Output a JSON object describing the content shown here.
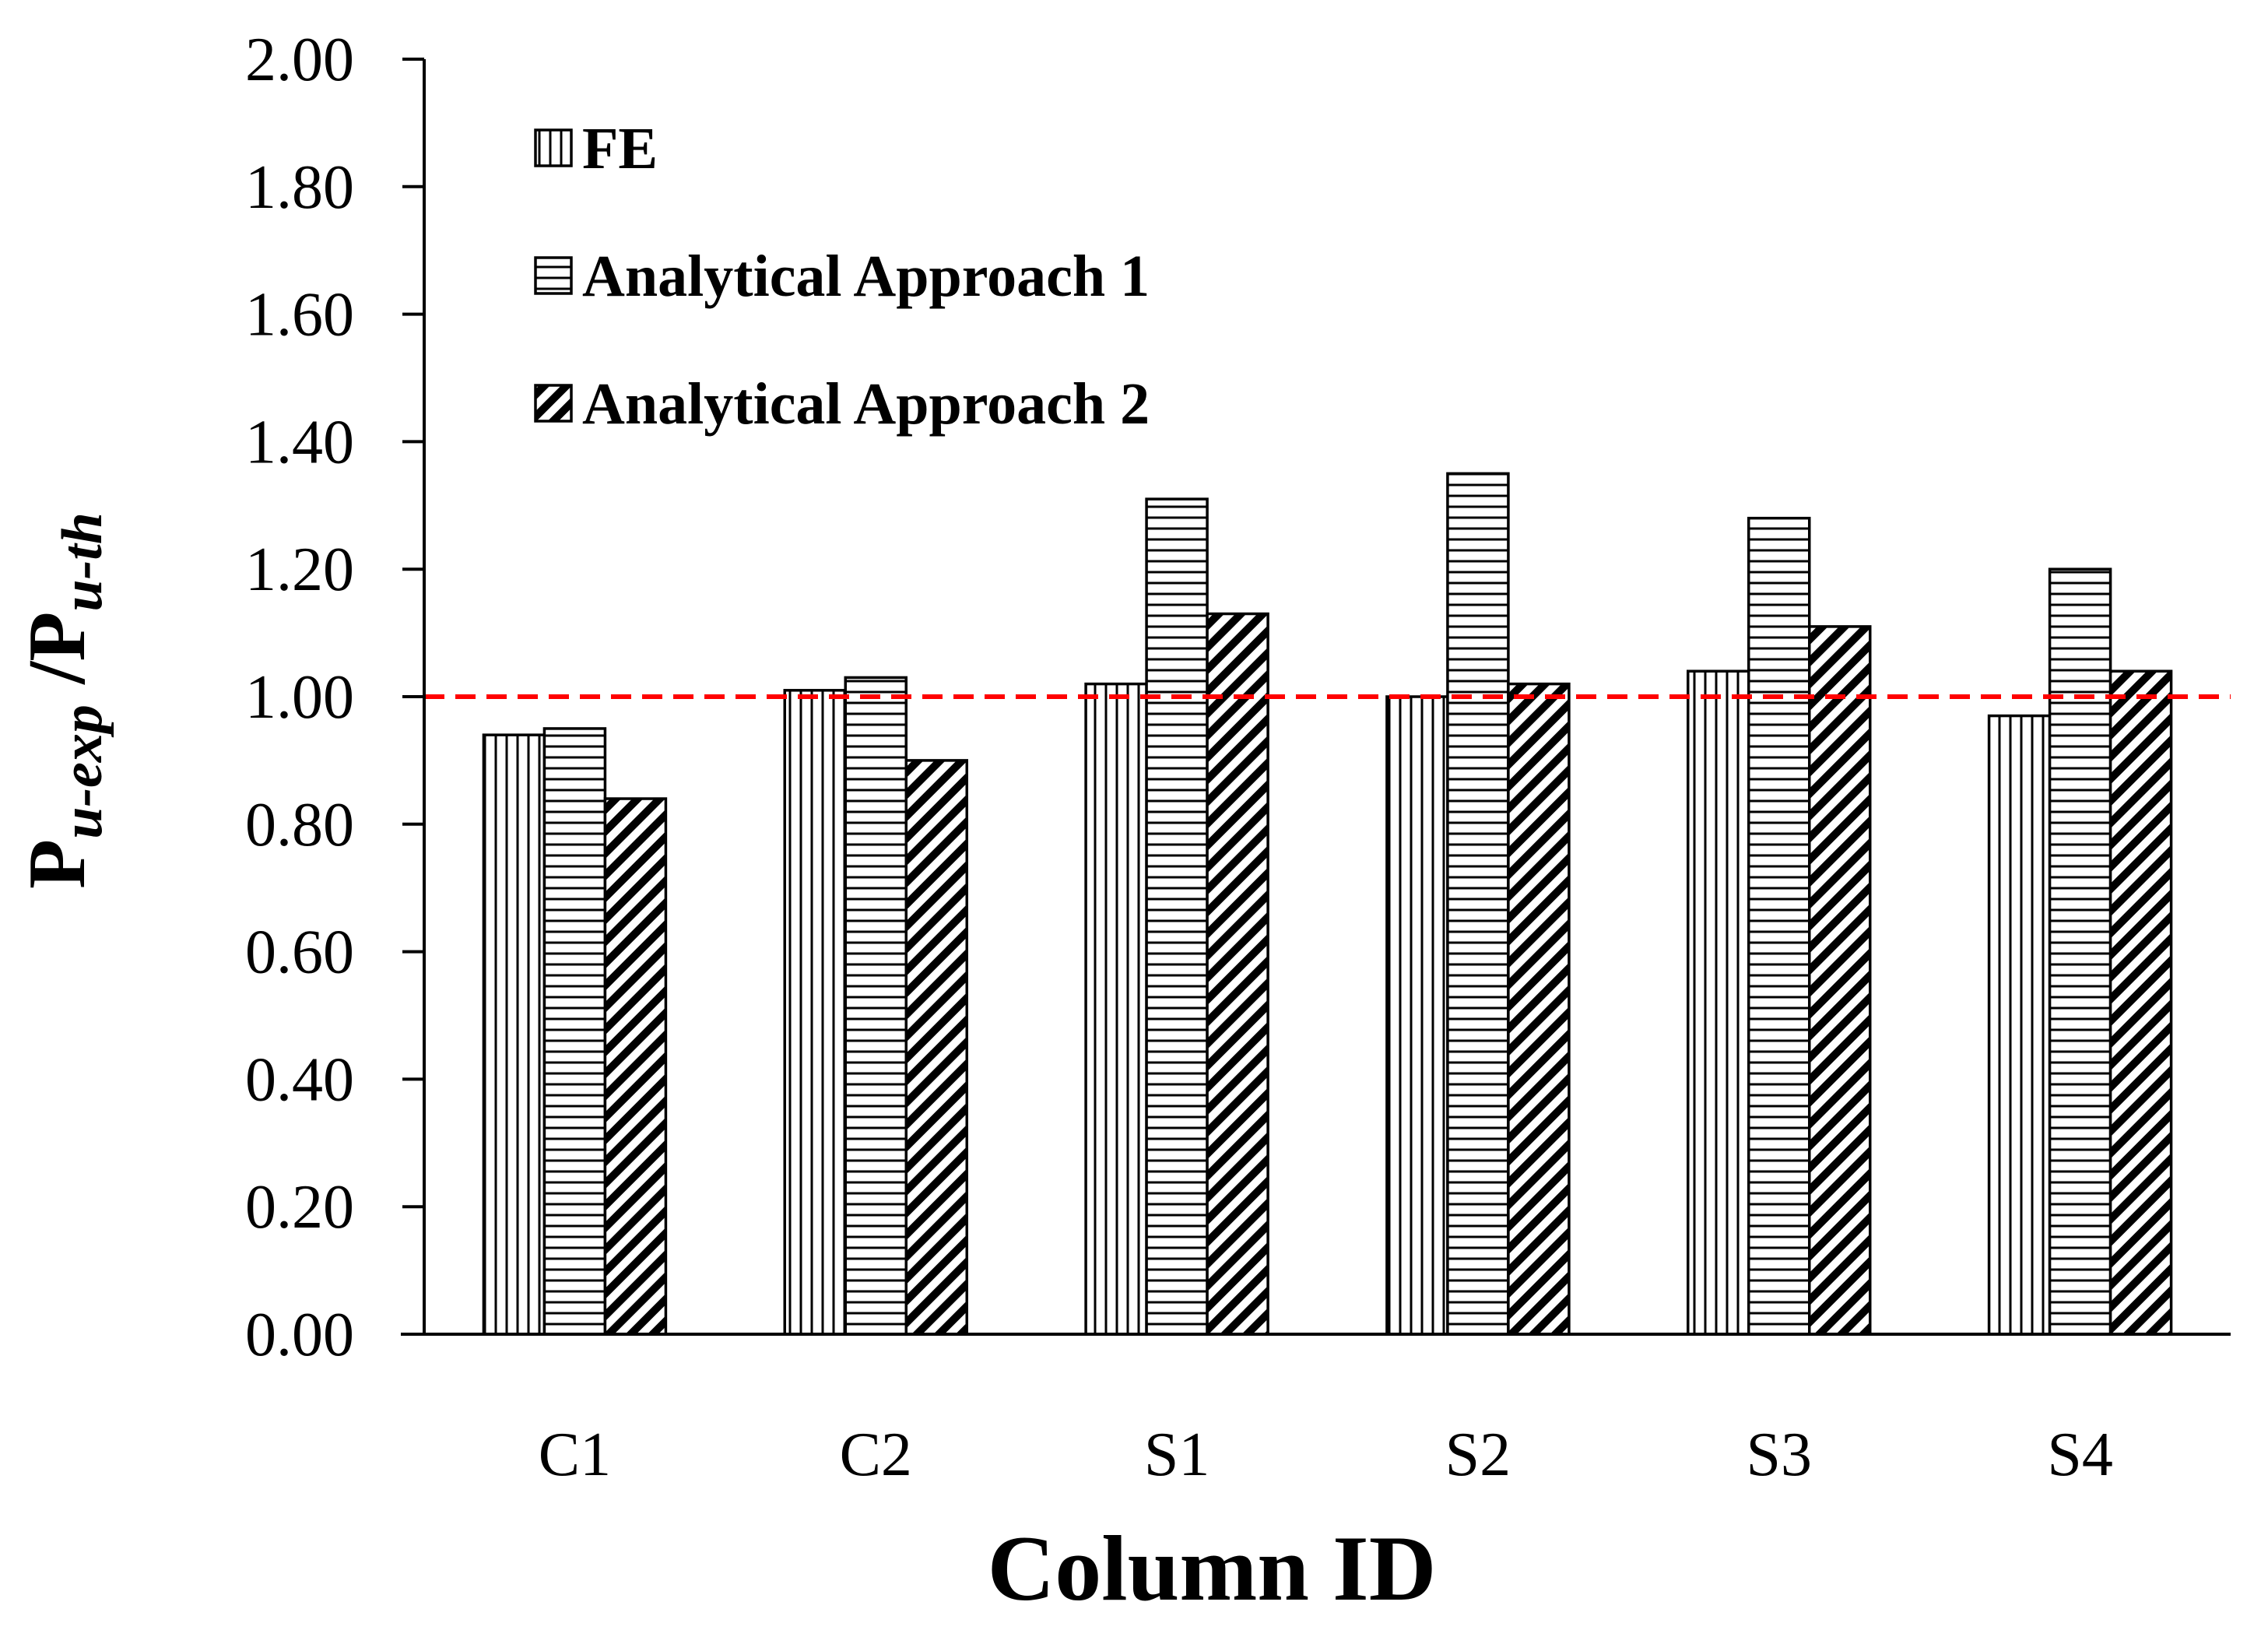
{
  "chart_data": {
    "type": "bar",
    "title": "",
    "xlabel": "Column ID",
    "ylabel": {
      "p1": "P",
      "s1": "u-exp",
      "sep": " /",
      "p2": "P",
      "s2": "u-th"
    },
    "categories": [
      "C1",
      "C2",
      "S1",
      "S2",
      "S3",
      "S4"
    ],
    "series": [
      {
        "name": "FE",
        "pattern": "vertical",
        "values": [
          0.94,
          1.01,
          1.02,
          1.0,
          1.04,
          0.97
        ]
      },
      {
        "name": "Analytical Approach 1",
        "pattern": "horizontal",
        "values": [
          0.95,
          1.03,
          1.31,
          1.35,
          1.28,
          1.2
        ]
      },
      {
        "name": "Analytical Approach 2",
        "pattern": "diagonal",
        "values": [
          0.84,
          0.9,
          1.13,
          1.02,
          1.11,
          1.04
        ]
      }
    ],
    "ylim": [
      0,
      2.0
    ],
    "yticks": [
      "0.00",
      "0.20",
      "0.40",
      "0.60",
      "0.80",
      "1.00",
      "1.20",
      "1.40",
      "1.60",
      "1.80",
      "2.00"
    ],
    "reference_line": {
      "value": 1.0,
      "color": "#ff0000",
      "style": "dashed"
    },
    "legend_position": "top-left",
    "grid": false
  }
}
